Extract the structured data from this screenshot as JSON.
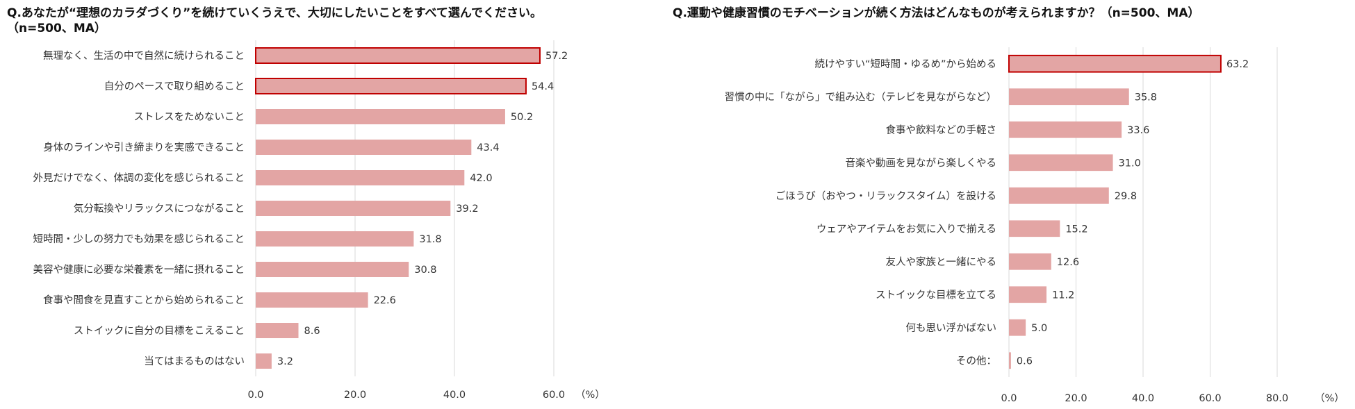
{
  "colors": {
    "bar_fill": "#e3a5a4",
    "highlight_stroke": "#c00000",
    "grid": "#d9d9d9"
  },
  "chart_data": [
    {
      "type": "bar",
      "orientation": "horizontal",
      "title": "Q.あなたが“理想のカラダづくり”を続けていくうえで、大切にしたいことをすべて選んでください。",
      "title_line2": "（n=500、MA）",
      "categories": [
        "無理なく、生活の中で自然に続けられること",
        "自分のペースで取り組めること",
        "ストレスをためないこと",
        "身体のラインや引き締まりを実感できること",
        "外見だけでなく、体調の変化を感じられること",
        "気分転換やリラックスにつながること",
        "短時間・少しの努力でも効果を感じられること",
        "美容や健康に必要な栄養素を一緒に摂れること",
        "食事や間食を見直すことから始められること",
        "ストイックに自分の目標をこえること",
        "当てはまるものはない"
      ],
      "values": [
        57.2,
        54.4,
        50.2,
        43.4,
        42.0,
        39.2,
        31.8,
        30.8,
        22.6,
        8.6,
        3.2
      ],
      "value_labels": [
        "57.2",
        "54.4",
        "50.2",
        "43.4",
        "42.0",
        "39.2",
        "31.8",
        "30.8",
        "22.6",
        "8.6",
        "3.2"
      ],
      "highlighted": [
        0,
        1
      ],
      "xlim": [
        0,
        60
      ],
      "xticks": [
        "0.0",
        "20.0",
        "40.0",
        "60.0"
      ],
      "unit": "（%）",
      "grid": true
    },
    {
      "type": "bar",
      "orientation": "horizontal",
      "title": "Q.運動や健康習慣のモチベーションが続く方法はどんなものが考えられますか？（n=500、MA）",
      "categories": [
        "続けやすい“短時間・ゆるめ”から始める",
        "習慣の中に「ながら」で組み込む（テレビを見ながらなど）",
        "食事や飲料などの手軽さ",
        "音楽や動画を見ながら楽しくやる",
        "ごほうび（おやつ・リラックスタイム）を設ける",
        "ウェアやアイテムをお気に入りで揃える",
        "友人や家族と一緒にやる",
        "ストイックな目標を立てる",
        "何も思い浮かばない",
        "その他："
      ],
      "values": [
        63.2,
        35.8,
        33.6,
        31.0,
        29.8,
        15.2,
        12.6,
        11.2,
        5.0,
        0.6
      ],
      "value_labels": [
        "63.2",
        "35.8",
        "33.6",
        "31.0",
        "29.8",
        "15.2",
        "12.6",
        "11.2",
        "5.0",
        "0.6"
      ],
      "highlighted": [
        0
      ],
      "xlim": [
        0,
        80
      ],
      "xticks": [
        "0.0",
        "20.0",
        "40.0",
        "60.0",
        "80.0"
      ],
      "unit": "（%）",
      "grid": true
    }
  ]
}
